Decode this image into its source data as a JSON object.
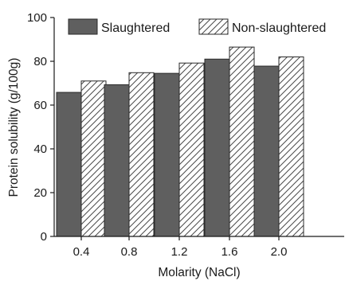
{
  "chart_data": {
    "type": "bar",
    "categories": [
      "0.4",
      "0.8",
      "1.2",
      "1.6",
      "2.0"
    ],
    "series": [
      {
        "name": "Slaughtered",
        "values": [
          65.8,
          69.3,
          74.5,
          81.0,
          77.8
        ],
        "fill": "#5f5f5f",
        "pattern": "solid"
      },
      {
        "name": "Non-slaughtered",
        "values": [
          71.0,
          74.8,
          79.2,
          86.5,
          82.0
        ],
        "fill": "#ffffff",
        "pattern": "diagonal-hatch"
      }
    ],
    "xlabel": "Molarity (NaCl)",
    "ylabel": "Protein solubility (g/100g)",
    "ylim": [
      0,
      100
    ],
    "yticks": [
      "0",
      "20",
      "40",
      "60",
      "80",
      "100"
    ],
    "grid": false,
    "legend_position": "top"
  }
}
